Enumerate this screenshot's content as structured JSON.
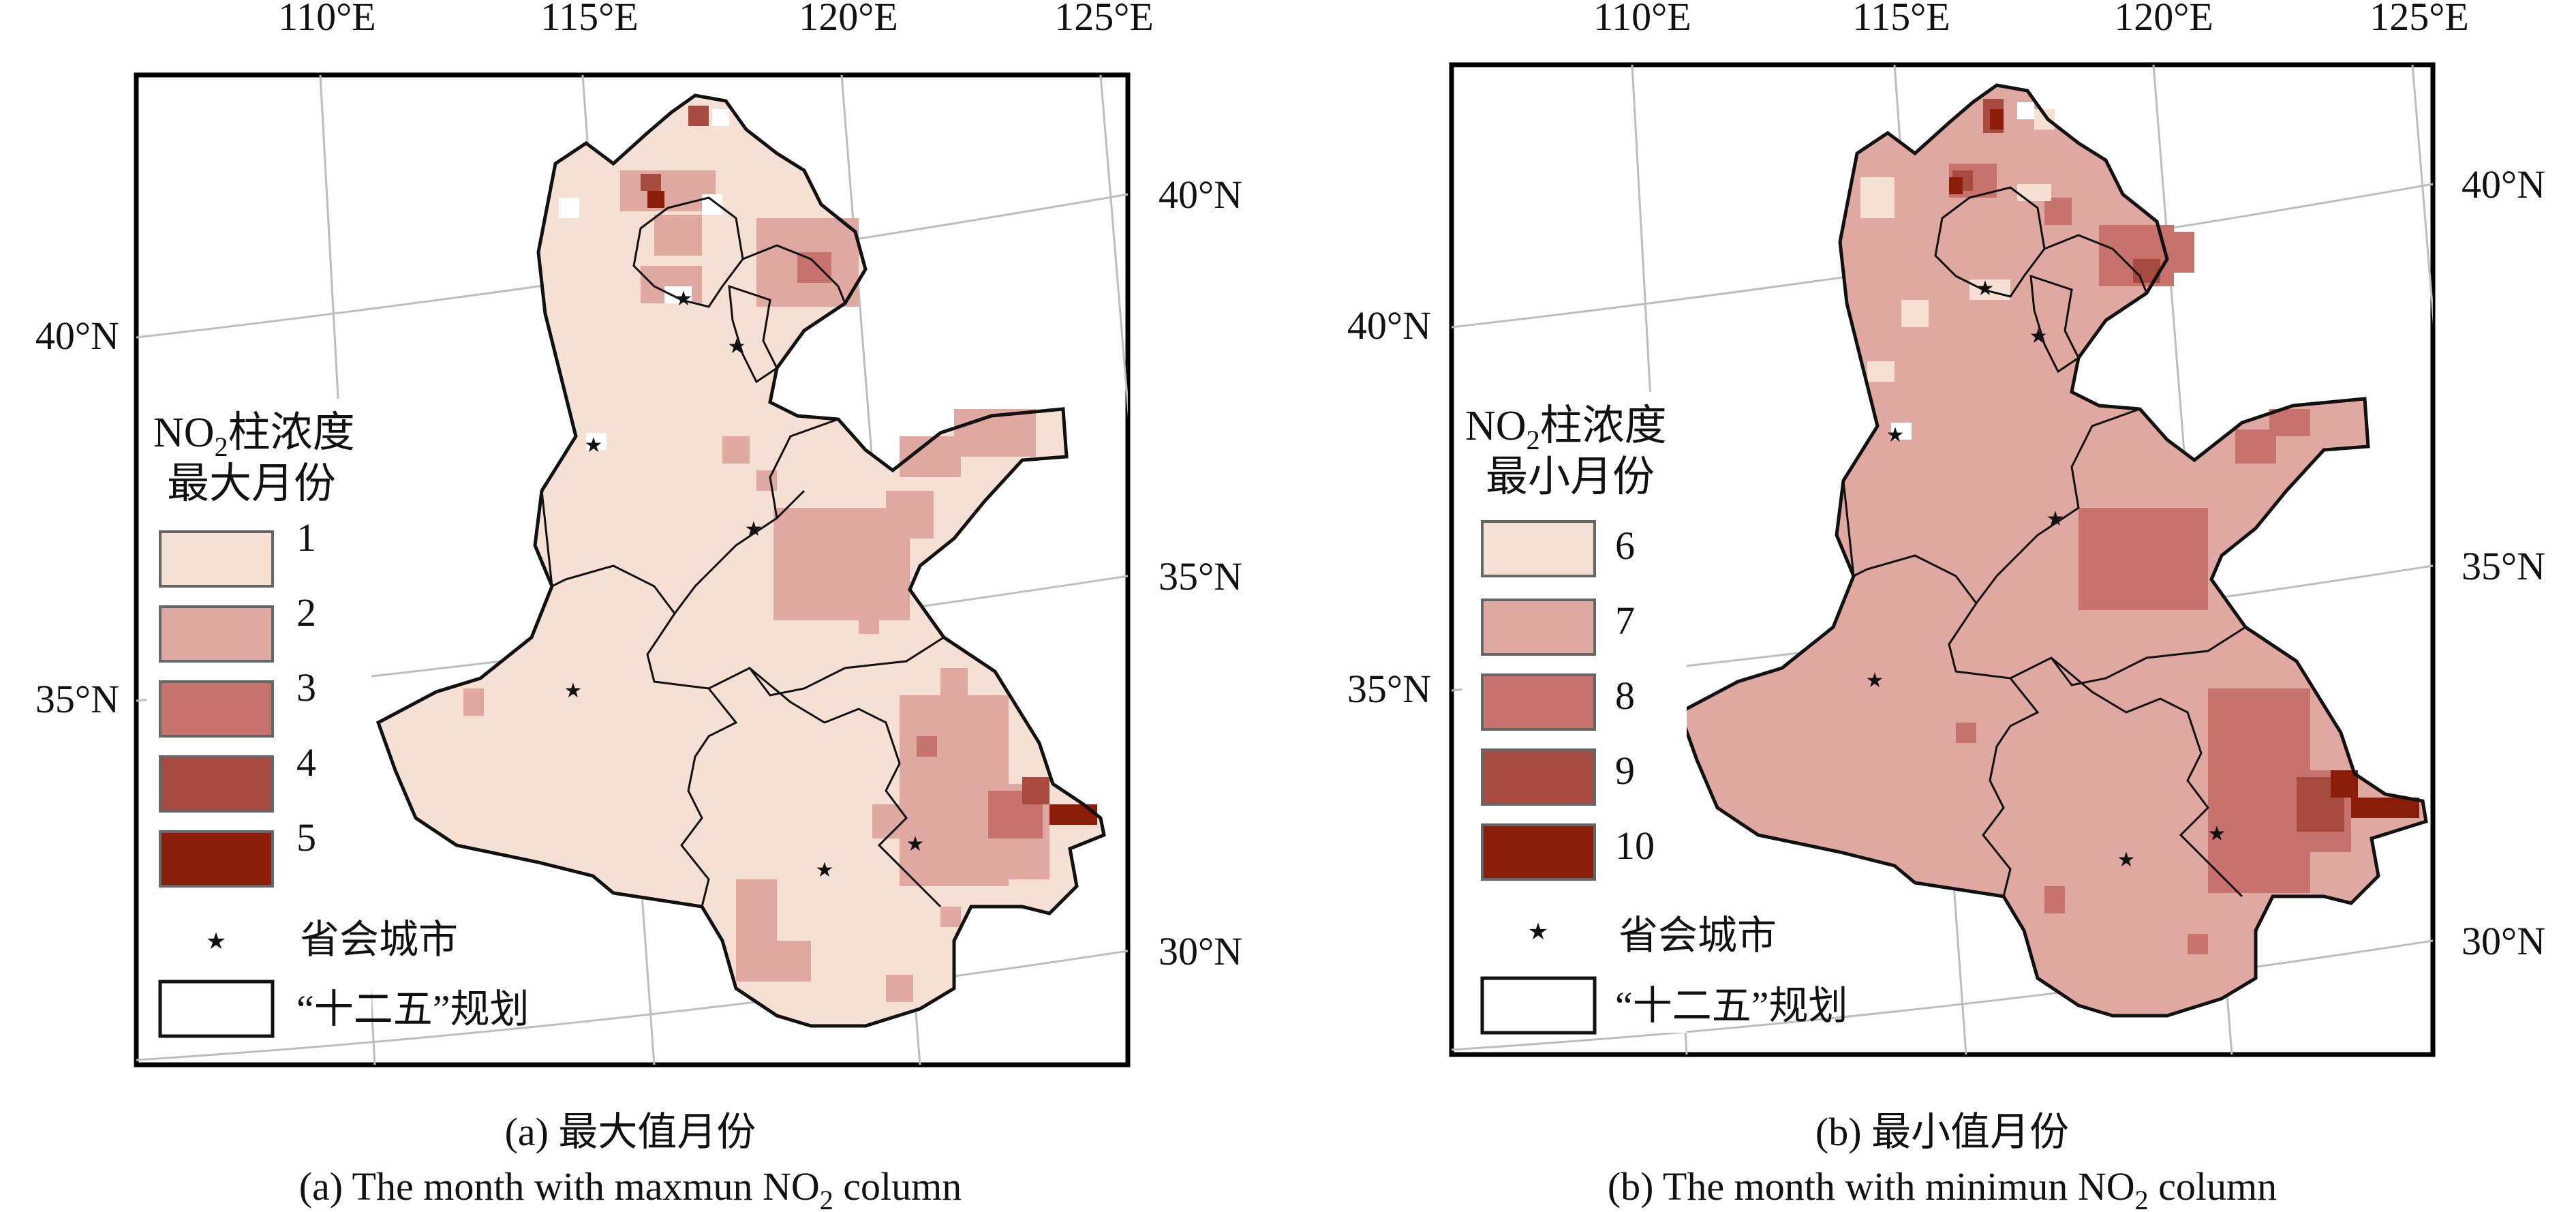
{
  "figure": {
    "panels": [
      {
        "id": "a",
        "longitude_labels": [
          "110°E",
          "115°E",
          "120°E",
          "125°E"
        ],
        "latitude_labels_left": [
          "40°N",
          "35°N"
        ],
        "latitude_labels_right": [
          "40°N",
          "35°N",
          "30°N"
        ],
        "legend": {
          "title_main": "NO",
          "title_sub": "2",
          "title_rest": "柱浓度",
          "title_line2": "最大月份",
          "classes": [
            {
              "label": "1",
              "color": "#f6e0d3"
            },
            {
              "label": "2",
              "color": "#dfa8a0"
            },
            {
              "label": "3",
              "color": "#c8726e"
            },
            {
              "label": "4",
              "color": "#a74a3f"
            },
            {
              "label": "5",
              "color": "#8b1c08"
            }
          ],
          "capital_label": "省会城市",
          "plan_label": "“十二五”规划"
        },
        "caption_cn": "(a) 最大值月份",
        "caption_en_pre": "(a) The month with maxmun NO",
        "caption_en_sub": "2",
        "caption_en_post": " column"
      },
      {
        "id": "b",
        "longitude_labels": [
          "110°E",
          "115°E",
          "120°E",
          "125°E"
        ],
        "latitude_labels_left": [
          "40°N",
          "35°N"
        ],
        "latitude_labels_right": [
          "40°N",
          "35°N",
          "30°N"
        ],
        "legend": {
          "title_main": "NO",
          "title_sub": "2",
          "title_rest": "柱浓度",
          "title_line2": "最小月份",
          "classes": [
            {
              "label": "6",
              "color": "#f6e0d3"
            },
            {
              "label": "7",
              "color": "#dfa8a0"
            },
            {
              "label": "8",
              "color": "#c8726e"
            },
            {
              "label": "9",
              "color": "#a74a3f"
            },
            {
              "label": "10",
              "color": "#8b1c08"
            }
          ],
          "capital_label": "省会城市",
          "plan_label": "“十二五”规划"
        },
        "caption_cn": "(b) 最小值月份",
        "caption_en_pre": "(b) The month with minimun NO",
        "caption_en_sub": "2",
        "caption_en_post": " column"
      }
    ]
  }
}
